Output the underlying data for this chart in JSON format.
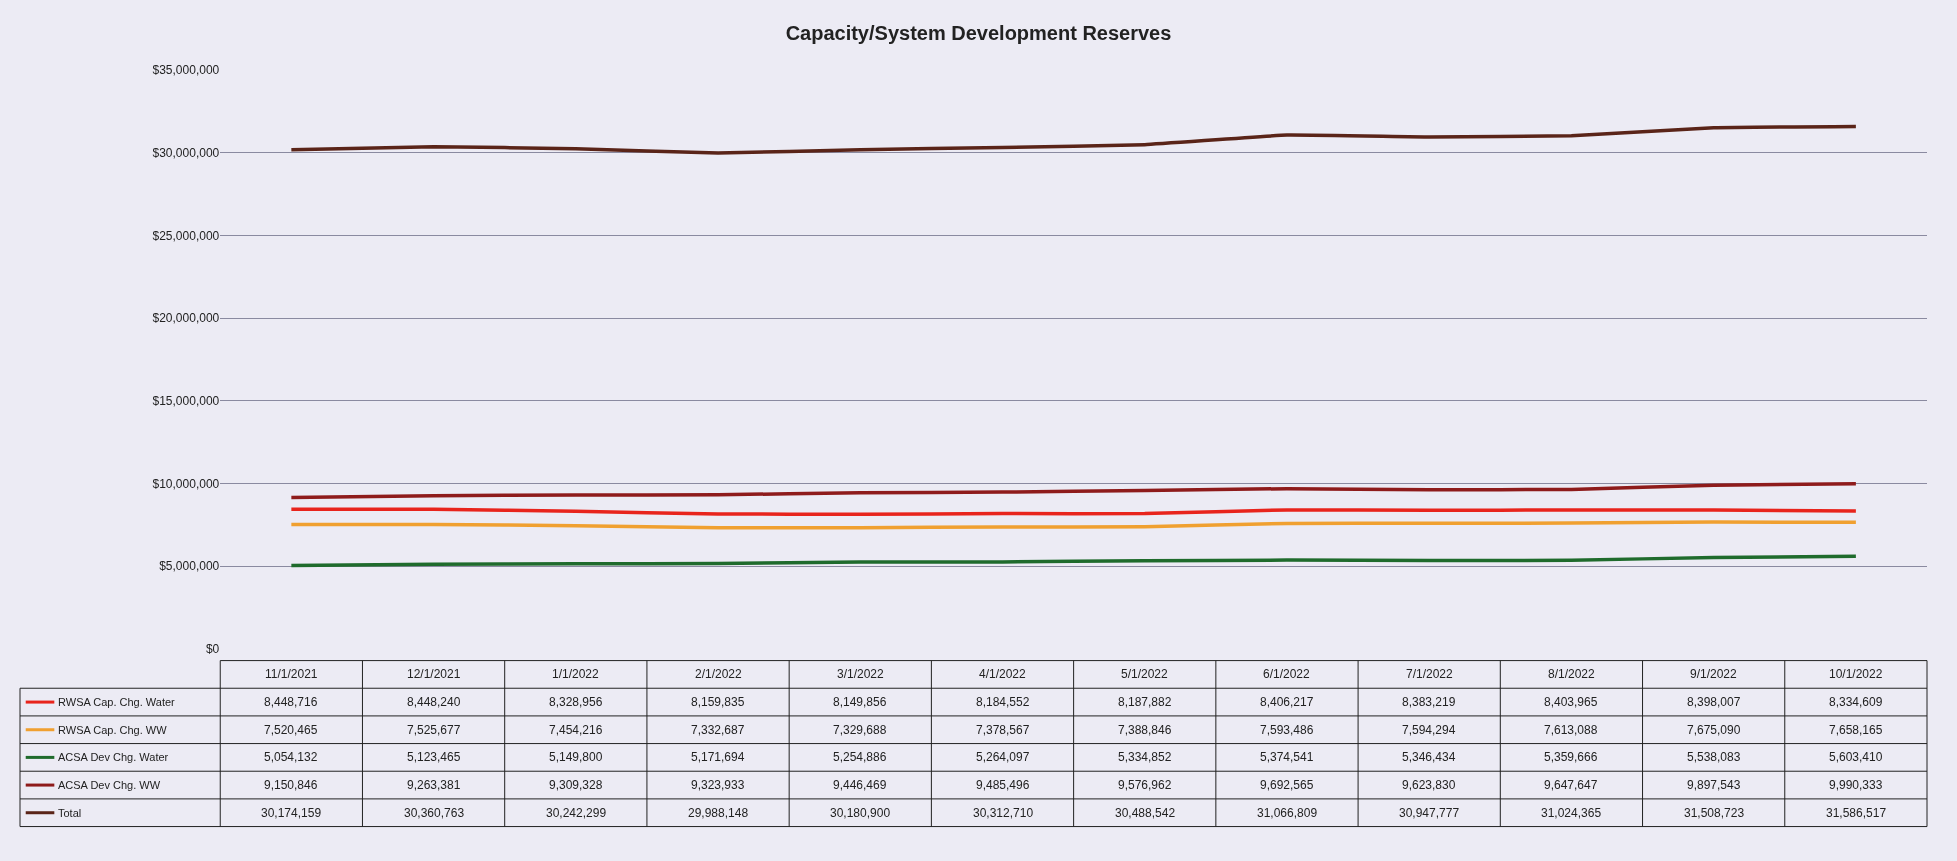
{
  "chart_data": {
    "type": "line",
    "title": "Capacity/System Development Reserves",
    "categories": [
      "11/1/2021",
      "12/1/2021",
      "1/1/2022",
      "2/1/2022",
      "3/1/2022",
      "4/1/2022",
      "5/1/2022",
      "6/1/2022",
      "7/1/2022",
      "8/1/2022",
      "9/1/2022",
      "10/1/2022"
    ],
    "series": [
      {
        "name": "RWSA Cap. Chg. Water",
        "color": "#e8241c",
        "values": [
          8448716,
          8448240,
          8328956,
          8159835,
          8149856,
          8184552,
          8187882,
          8406217,
          8383219,
          8403965,
          8398007,
          8334609
        ],
        "value_labels": [
          "8,448,716",
          "8,448,240",
          "8,328,956",
          "8,159,835",
          "8,149,856",
          "8,184,552",
          "8,187,882",
          "8,406,217",
          "8,383,219",
          "8,403,965",
          "8,398,007",
          "8,334,609"
        ]
      },
      {
        "name": "RWSA Cap. Chg. WW",
        "color": "#f0a030",
        "values": [
          7520465,
          7525677,
          7454216,
          7332687,
          7329688,
          7378567,
          7388846,
          7593486,
          7594294,
          7613088,
          7675090,
          7658165
        ],
        "value_labels": [
          "7,520,465",
          "7,525,677",
          "7,454,216",
          "7,332,687",
          "7,329,688",
          "7,378,567",
          "7,388,846",
          "7,593,486",
          "7,594,294",
          "7,613,088",
          "7,675,090",
          "7,658,165"
        ]
      },
      {
        "name": "ACSA Dev Chg. Water",
        "color": "#1f6b2c",
        "values": [
          5054132,
          5123465,
          5149800,
          5171694,
          5254886,
          5264097,
          5334852,
          5374541,
          5346434,
          5359666,
          5538083,
          5603410
        ],
        "value_labels": [
          "5,054,132",
          "5,123,465",
          "5,149,800",
          "5,171,694",
          "5,254,886",
          "5,264,097",
          "5,334,852",
          "5,374,541",
          "5,346,434",
          "5,359,666",
          "5,538,083",
          "5,603,410"
        ]
      },
      {
        "name": "ACSA Dev Chg. WW",
        "color": "#8e1b1b",
        "values": [
          9150846,
          9263381,
          9309328,
          9323933,
          9446469,
          9485496,
          9576962,
          9692565,
          9623830,
          9647647,
          9897543,
          9990333
        ],
        "value_labels": [
          "9,150,846",
          "9,263,381",
          "9,309,328",
          "9,323,933",
          "9,446,469",
          "9,485,496",
          "9,576,962",
          "9,692,565",
          "9,623,830",
          "9,647,647",
          "9,897,543",
          "9,990,333"
        ]
      },
      {
        "name": "Total",
        "color": "#5a2418",
        "values": [
          30174159,
          30360763,
          30242299,
          29988148,
          30180900,
          30312710,
          30488542,
          31066809,
          30947777,
          31024365,
          31508723,
          31586517
        ],
        "value_labels": [
          "30,174,159",
          "30,360,763",
          "30,242,299",
          "29,988,148",
          "30,180,900",
          "30,312,710",
          "30,488,542",
          "31,066,809",
          "30,947,777",
          "31,024,365",
          "31,508,723",
          "31,586,517"
        ]
      }
    ],
    "ylim": [
      0,
      35000000
    ],
    "yticks": [
      {
        "value": 0,
        "label": "$0"
      },
      {
        "value": 5000000,
        "label": "$5,000,000"
      },
      {
        "value": 10000000,
        "label": "$10,000,000"
      },
      {
        "value": 15000000,
        "label": "$15,000,000"
      },
      {
        "value": 20000000,
        "label": "$20,000,000"
      },
      {
        "value": 25000000,
        "label": "$25,000,000"
      },
      {
        "value": 30000000,
        "label": "$30,000,000"
      },
      {
        "value": 35000000,
        "label": "$35,000,000"
      }
    ],
    "grid": "y",
    "line_style": "solid",
    "marker": "none",
    "legend": "bottom left"
  }
}
